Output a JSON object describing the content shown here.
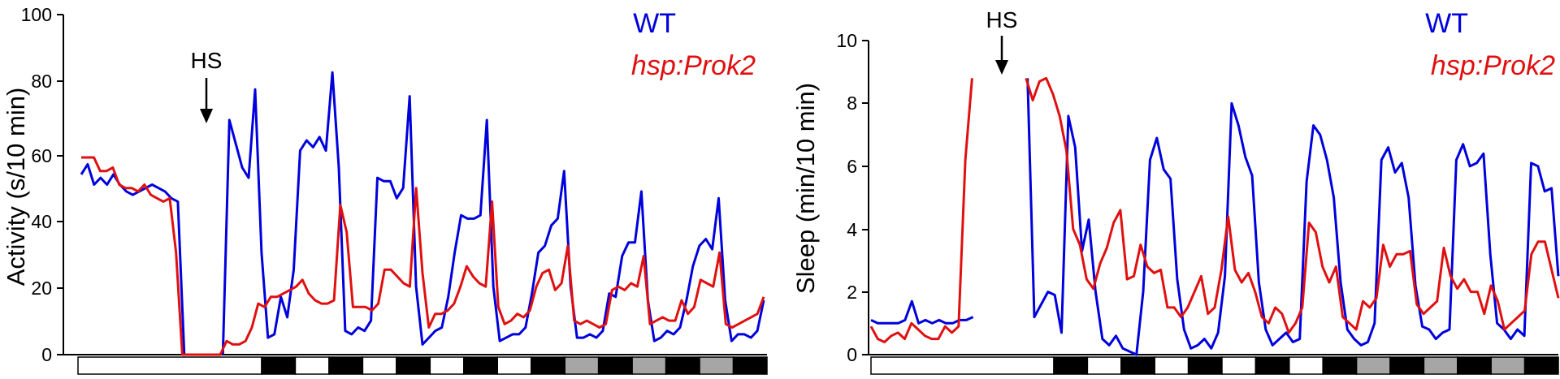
{
  "chart_data": [
    {
      "type": "line",
      "ylabel": "Activity (s/10 min)",
      "ylim": [
        0,
        100
      ],
      "yticks": [
        "0",
        "20",
        "40",
        "60",
        "80",
        "100"
      ],
      "annotation": "HS",
      "legend": [
        "WT",
        "hsp:Prok2"
      ],
      "legend_placement": "top-right",
      "light_bar": [
        "white",
        "black",
        "white",
        "black",
        "white",
        "black",
        "white",
        "black",
        "white",
        "black",
        "gray",
        "black",
        "gray",
        "black",
        "gray",
        "black"
      ],
      "series": [
        {
          "name": "WT",
          "color": "#0000dd",
          "gaps": [
            [
              16,
              22
            ]
          ],
          "values": [
            53,
            56,
            50,
            52,
            50,
            53,
            50,
            48,
            47,
            48,
            49,
            50,
            49,
            48,
            46,
            45,
            0,
            0,
            0,
            0,
            0,
            0,
            0,
            69,
            62,
            55,
            52,
            78,
            30,
            5,
            6,
            17,
            11,
            25,
            60,
            63,
            61,
            64,
            60,
            83,
            55,
            7,
            6,
            8,
            7,
            10,
            52,
            51,
            51,
            46,
            49,
            76,
            20,
            3,
            5,
            7,
            8,
            17,
            30,
            41,
            40,
            40,
            41,
            69,
            20,
            4,
            5,
            6,
            6,
            8,
            18,
            30,
            32,
            38,
            40,
            54,
            20,
            5,
            5,
            6,
            5,
            7,
            18,
            17,
            29,
            33,
            33,
            48,
            16,
            4,
            5,
            7,
            6,
            8,
            16,
            26,
            32,
            34,
            31,
            46,
            16,
            4,
            6,
            6,
            5,
            7,
            16
          ]
        },
        {
          "name": "hsp:Prok2",
          "color": "#e01010",
          "gaps": [],
          "values": [
            58,
            58,
            58,
            54,
            54,
            55,
            50,
            49,
            49,
            48,
            50,
            47,
            46,
            45,
            46,
            30,
            0,
            0,
            0,
            0,
            0,
            0,
            0,
            4,
            3,
            3,
            4,
            8,
            15,
            14,
            17,
            17,
            18,
            19,
            20,
            22,
            18,
            16,
            15,
            15,
            16,
            44,
            36,
            14,
            14,
            14,
            13,
            15,
            25,
            25,
            23,
            21,
            20,
            49,
            24,
            8,
            12,
            12,
            13,
            15,
            20,
            26,
            23,
            21,
            20,
            45,
            14,
            9,
            10,
            12,
            11,
            13,
            20,
            24,
            25,
            19,
            21,
            32,
            10,
            9,
            10,
            9,
            8,
            9,
            19,
            20,
            19,
            21,
            20,
            29,
            9,
            10,
            11,
            10,
            10,
            16,
            12,
            14,
            22,
            21,
            20,
            30,
            9,
            8,
            9,
            10,
            11,
            12,
            17
          ]
        }
      ]
    },
    {
      "type": "line",
      "ylabel": "Sleep (min/10 min)",
      "ylim": [
        0,
        10
      ],
      "yticks": [
        "0",
        "2",
        "4",
        "6",
        "8",
        "10"
      ],
      "annotation": "HS",
      "legend": [
        "WT",
        "hsp:Prok2"
      ],
      "legend_placement": "top-right",
      "light_bar": [
        "white",
        "black",
        "white",
        "black",
        "white",
        "black",
        "white",
        "black",
        "white",
        "black",
        "gray",
        "black",
        "gray",
        "black",
        "gray",
        "black"
      ],
      "series": [
        {
          "name": "WT",
          "color": "#0000dd",
          "gaps": [
            [
              15,
              22
            ]
          ],
          "values": [
            1.1,
            1.0,
            1.0,
            1.0,
            1.0,
            1.1,
            1.7,
            1.0,
            1.1,
            1.0,
            1.1,
            1.0,
            1.0,
            1.1,
            1.1,
            1.2,
            null,
            null,
            null,
            null,
            null,
            null,
            null,
            8.8,
            1.2,
            1.6,
            2.0,
            1.9,
            0.7,
            7.6,
            6.6,
            3.3,
            4.3,
            2.0,
            0.5,
            0.3,
            0.6,
            0.2,
            0.1,
            0.0,
            2.0,
            6.2,
            6.9,
            5.9,
            5.6,
            2.4,
            0.8,
            0.2,
            0.3,
            0.5,
            0.2,
            0.7,
            2.5,
            8.0,
            7.3,
            6.3,
            5.7,
            2.3,
            0.8,
            0.3,
            0.5,
            0.7,
            0.4,
            0.5,
            5.5,
            7.3,
            7.0,
            6.2,
            5.0,
            2.3,
            0.8,
            0.5,
            0.3,
            0.4,
            1.0,
            6.2,
            6.6,
            5.8,
            6.1,
            5.0,
            2.2,
            0.9,
            0.8,
            0.5,
            0.7,
            0.8,
            6.2,
            6.7,
            6.0,
            6.1,
            6.4,
            3.2,
            1.0,
            0.8,
            0.5,
            0.8,
            0.6,
            6.1,
            6.0,
            5.2,
            5.3,
            2.5
          ]
        },
        {
          "name": "hsp:Prok2",
          "color": "#e01010",
          "gaps": [],
          "values": [
            0.9,
            0.5,
            0.4,
            0.6,
            0.7,
            0.5,
            1.0,
            0.8,
            0.6,
            0.5,
            0.5,
            0.9,
            0.7,
            0.9,
            6.2,
            8.8,
            null,
            null,
            null,
            null,
            null,
            null,
            null,
            8.8,
            8.1,
            8.7,
            8.8,
            8.3,
            7.6,
            6.5,
            4.0,
            3.5,
            2.4,
            2.1,
            2.9,
            3.4,
            4.2,
            4.6,
            2.4,
            2.5,
            3.5,
            2.8,
            2.6,
            2.7,
            1.5,
            1.5,
            1.2,
            1.5,
            2.0,
            2.5,
            1.3,
            1.5,
            2.7,
            4.4,
            2.7,
            2.3,
            2.6,
            2.0,
            1.2,
            1.0,
            1.5,
            1.3,
            0.7,
            1.0,
            1.5,
            4.2,
            3.9,
            2.8,
            2.3,
            2.8,
            1.2,
            1.0,
            0.8,
            1.7,
            1.5,
            1.8,
            3.5,
            2.8,
            3.2,
            3.2,
            3.3,
            1.6,
            1.3,
            1.5,
            1.7,
            3.4,
            2.5,
            2.1,
            2.4,
            2.0,
            2.0,
            1.3,
            2.2,
            1.7,
            0.8,
            1.0,
            1.2,
            1.4,
            3.2,
            3.6,
            3.6,
            2.7,
            1.8
          ]
        }
      ]
    }
  ]
}
